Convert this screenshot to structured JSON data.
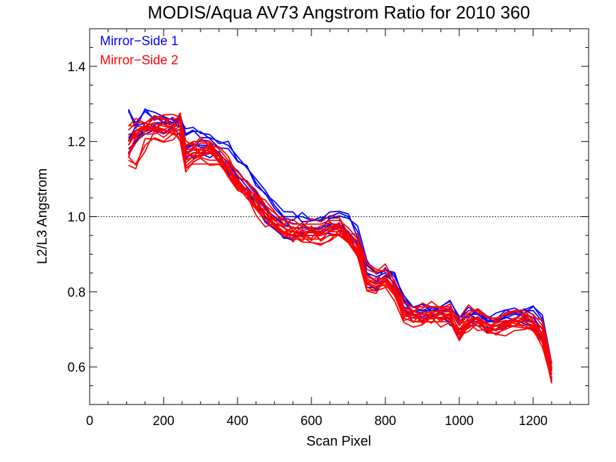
{
  "chart_data": {
    "type": "line",
    "title": "MODIS/Aqua AV73 Angstrom Ratio for 2010 360",
    "xlabel": "Scan Pixel",
    "ylabel": "L2/L3 Angstrom",
    "xlim": [
      0,
      1350
    ],
    "ylim": [
      0.5,
      1.5
    ],
    "x_ticks": [
      0,
      200,
      400,
      600,
      800,
      1000,
      1200
    ],
    "y_ticks": [
      0.6,
      0.8,
      1.0,
      1.2,
      1.4
    ],
    "x_tick_labels": [
      "0",
      "200",
      "400",
      "600",
      "800",
      "1000",
      "1200"
    ],
    "y_tick_labels": [
      "0.6",
      "0.8",
      "1.0",
      "1.2",
      "1.4"
    ],
    "reference_line": {
      "y": 1.0,
      "style": "dotted",
      "color": "#000000"
    },
    "legend": {
      "placement": "top-left",
      "entries": [
        {
          "label": "Mirror−Side 1",
          "color": "#0000ff"
        },
        {
          "label": "Mirror−Side 2",
          "color": "#ff0000"
        }
      ]
    },
    "x": [
      105,
      125,
      150,
      175,
      200,
      225,
      245,
      260,
      280,
      300,
      325,
      350,
      375,
      400,
      425,
      450,
      475,
      500,
      525,
      550,
      575,
      600,
      625,
      650,
      675,
      700,
      725,
      750,
      775,
      800,
      825,
      850,
      875,
      900,
      925,
      950,
      975,
      1000,
      1025,
      1050,
      1075,
      1100,
      1125,
      1150,
      1175,
      1200,
      1225,
      1250
    ],
    "base_curve": [
      1.2,
      1.22,
      1.23,
      1.24,
      1.24,
      1.24,
      1.24,
      1.17,
      1.18,
      1.18,
      1.18,
      1.16,
      1.13,
      1.1,
      1.07,
      1.04,
      1.01,
      0.99,
      0.97,
      0.96,
      0.96,
      0.96,
      0.96,
      0.97,
      0.97,
      0.95,
      0.92,
      0.84,
      0.83,
      0.84,
      0.81,
      0.75,
      0.74,
      0.74,
      0.74,
      0.74,
      0.74,
      0.7,
      0.73,
      0.73,
      0.71,
      0.71,
      0.72,
      0.73,
      0.73,
      0.72,
      0.69,
      0.58
    ],
    "series": [
      {
        "legend_index": 0,
        "color": "#0000ff",
        "values": [
          1.28,
          1.25,
          1.28,
          1.26,
          1.26,
          1.25,
          1.27,
          1.22,
          1.23,
          1.21,
          1.21,
          1.2,
          1.19,
          1.16,
          1.13,
          1.1,
          1.07,
          1.03,
          1.0,
          1.0,
          1.0,
          0.99,
          0.99,
          1.0,
          1.01,
          1.0,
          0.96,
          0.87,
          0.85,
          0.86,
          0.84,
          0.79,
          0.76,
          0.75,
          0.76,
          0.76,
          0.76,
          0.73,
          0.75,
          0.75,
          0.73,
          0.73,
          0.74,
          0.75,
          0.75,
          0.75,
          0.72,
          0.61
        ]
      },
      {
        "legend_index": 0,
        "color": "#0000ff",
        "values": [
          1.18,
          1.2,
          1.22,
          1.23,
          1.22,
          1.23,
          1.23,
          1.16,
          1.17,
          1.17,
          1.17,
          1.16,
          1.12,
          1.09,
          1.07,
          1.03,
          1.0,
          0.98,
          0.96,
          0.95,
          0.95,
          0.95,
          0.95,
          0.96,
          0.96,
          0.94,
          0.91,
          0.83,
          0.82,
          0.83,
          0.8,
          0.74,
          0.73,
          0.73,
          0.73,
          0.73,
          0.72,
          0.69,
          0.72,
          0.72,
          0.7,
          0.7,
          0.71,
          0.72,
          0.72,
          0.71,
          0.68,
          0.57
        ]
      },
      {
        "legend_index": 0,
        "color": "#0000ff",
        "values": [
          1.21,
          1.23,
          1.24,
          1.25,
          1.25,
          1.25,
          1.25,
          1.18,
          1.19,
          1.19,
          1.19,
          1.17,
          1.14,
          1.11,
          1.08,
          1.05,
          1.02,
          1.0,
          0.98,
          0.97,
          0.97,
          0.97,
          0.97,
          0.98,
          0.98,
          0.96,
          0.93,
          0.85,
          0.84,
          0.85,
          0.82,
          0.76,
          0.75,
          0.75,
          0.75,
          0.75,
          0.75,
          0.71,
          0.74,
          0.74,
          0.72,
          0.72,
          0.73,
          0.74,
          0.74,
          0.73,
          0.7,
          0.59
        ]
      },
      {
        "legend_index": 1,
        "color": "#ff0000",
        "values": [
          1.15,
          1.14,
          1.19,
          1.21,
          1.2,
          1.22,
          1.21,
          1.13,
          1.14,
          1.14,
          1.14,
          1.14,
          1.11,
          1.08,
          1.05,
          1.02,
          0.99,
          0.97,
          0.95,
          0.94,
          0.94,
          0.94,
          0.94,
          0.95,
          0.95,
          0.93,
          0.9,
          0.82,
          0.81,
          0.82,
          0.79,
          0.73,
          0.72,
          0.72,
          0.72,
          0.72,
          0.72,
          0.67,
          0.71,
          0.71,
          0.69,
          0.69,
          0.7,
          0.71,
          0.71,
          0.7,
          0.67,
          0.56
        ]
      },
      {
        "legend_index": 1,
        "color": "#ff0000",
        "values": [
          1.2,
          1.23,
          1.24,
          1.23,
          1.25,
          1.23,
          1.24,
          1.17,
          1.18,
          1.18,
          1.19,
          1.16,
          1.13,
          1.1,
          1.07,
          1.04,
          1.01,
          0.99,
          0.97,
          0.96,
          0.96,
          0.96,
          0.96,
          0.97,
          0.97,
          0.95,
          0.92,
          0.84,
          0.83,
          0.84,
          0.81,
          0.75,
          0.74,
          0.74,
          0.74,
          0.74,
          0.74,
          0.7,
          0.73,
          0.73,
          0.71,
          0.71,
          0.72,
          0.73,
          0.73,
          0.72,
          0.69,
          0.58
        ]
      },
      {
        "legend_index": 1,
        "color": "#ff0000",
        "values": [
          1.23,
          1.25,
          1.25,
          1.26,
          1.26,
          1.26,
          1.26,
          1.19,
          1.2,
          1.2,
          1.2,
          1.18,
          1.15,
          1.12,
          1.09,
          1.06,
          1.03,
          1.01,
          0.99,
          0.98,
          0.98,
          0.98,
          0.98,
          0.99,
          0.99,
          0.97,
          0.94,
          0.86,
          0.85,
          0.86,
          0.83,
          0.77,
          0.76,
          0.76,
          0.76,
          0.76,
          0.76,
          0.72,
          0.75,
          0.75,
          0.73,
          0.73,
          0.74,
          0.75,
          0.75,
          0.74,
          0.71,
          0.6
        ]
      },
      {
        "legend_index": 1,
        "color": "#ff0000",
        "values": [
          1.17,
          1.21,
          1.22,
          1.22,
          1.23,
          1.22,
          1.22,
          1.15,
          1.16,
          1.16,
          1.17,
          1.15,
          1.12,
          1.09,
          1.06,
          1.03,
          1.0,
          0.98,
          0.96,
          0.95,
          0.95,
          0.95,
          0.95,
          0.96,
          0.96,
          0.94,
          0.91,
          0.83,
          0.82,
          0.83,
          0.8,
          0.74,
          0.73,
          0.73,
          0.73,
          0.73,
          0.73,
          0.69,
          0.72,
          0.72,
          0.7,
          0.7,
          0.71,
          0.72,
          0.72,
          0.71,
          0.68,
          0.57
        ]
      },
      {
        "legend_index": 1,
        "color": "#ff0000",
        "values": [
          1.19,
          1.22,
          1.24,
          1.25,
          1.24,
          1.24,
          1.25,
          1.16,
          1.17,
          1.17,
          1.18,
          1.15,
          1.12,
          1.09,
          1.06,
          1.03,
          1.0,
          0.98,
          0.96,
          0.96,
          0.95,
          0.96,
          0.95,
          0.96,
          0.97,
          0.94,
          0.91,
          0.83,
          0.82,
          0.83,
          0.8,
          0.74,
          0.73,
          0.74,
          0.73,
          0.74,
          0.73,
          0.69,
          0.72,
          0.72,
          0.7,
          0.71,
          0.71,
          0.72,
          0.72,
          0.71,
          0.68,
          0.57
        ]
      }
    ],
    "replicas_per_series": 3,
    "replica_jitter": 0.018,
    "grid": false
  }
}
